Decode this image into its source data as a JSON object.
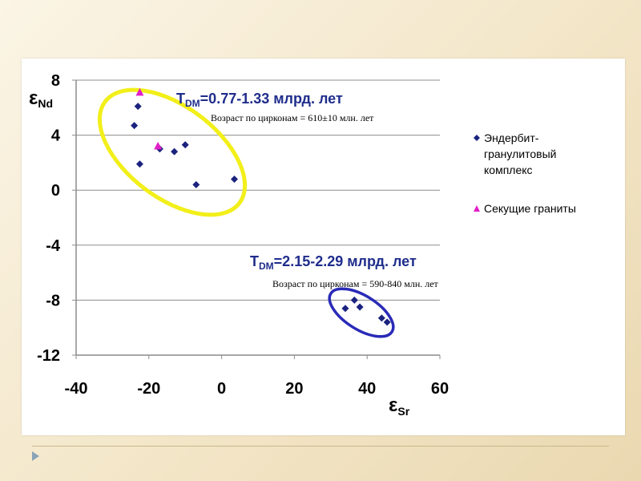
{
  "chart_data": {
    "type": "scatter",
    "xlabel": "ε",
    "xlabel_sub": "Sr",
    "ylabel": "ε",
    "ylabel_sub": "Nd",
    "xlim": [
      -40,
      60
    ],
    "ylim": [
      -12,
      8
    ],
    "xticks": [
      -40,
      -20,
      0,
      20,
      40,
      60
    ],
    "yticks": [
      8,
      4,
      0,
      -4,
      -8,
      -12
    ],
    "grid": "horizontal",
    "legend_position": "right",
    "series": [
      {
        "name": "Эндербит-гранулитовый комплекс",
        "name_lines": [
          "Эндербит-",
          "гранулитовый",
          "комплекс"
        ],
        "marker": "diamond",
        "color": "#1a237e",
        "points": [
          [
            -23,
            6.1
          ],
          [
            -24,
            4.7
          ],
          [
            -22.5,
            1.9
          ],
          [
            -17,
            3.0
          ],
          [
            -13,
            2.8
          ],
          [
            -10,
            3.3
          ],
          [
            -7,
            0.4
          ],
          [
            3.5,
            0.8
          ],
          [
            34,
            -8.6
          ],
          [
            36.5,
            -8.0
          ],
          [
            38,
            -8.5
          ],
          [
            44,
            -9.3
          ],
          [
            45.5,
            -9.6
          ]
        ]
      },
      {
        "name": "Секущие граниты",
        "name_lines": [
          "Секущие граниты"
        ],
        "marker": "triangle",
        "color": "#e21ec8",
        "points": [
          [
            -22.5,
            7.1
          ],
          [
            -17.5,
            3.2
          ]
        ]
      }
    ],
    "annotations": [
      {
        "main": "T",
        "sub": "DM",
        "rest": "=0.77-1.33 млрд. лет",
        "detail": "Возраст по цирконам = 610±10 млн. лет"
      },
      {
        "main": "T",
        "sub": "DM",
        "rest": "=2.15-2.29 млрд. лет",
        "detail": "Возраст по цирконам = 590-840 млн. лет"
      }
    ],
    "ellipse_colors": [
      "#f2ef1a",
      "#2a2ab8"
    ]
  }
}
